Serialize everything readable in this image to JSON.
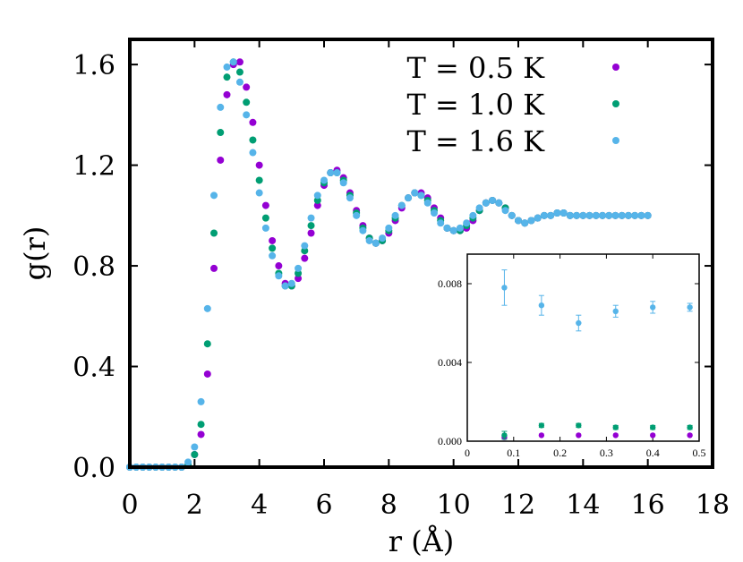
{
  "chart_data": [
    {
      "type": "scatter",
      "xlabel": "r (Å)",
      "ylabel": "g(r)",
      "xlim": [
        0,
        18
      ],
      "ylim": [
        0.0,
        1.7
      ],
      "xticks": [
        "0",
        "2",
        "4",
        "6",
        "8",
        "10",
        "12",
        "14",
        "16",
        "18"
      ],
      "yticks": [
        "0.0",
        "0.4",
        "0.8",
        "1.2",
        "1.6"
      ],
      "legend_position": "top-right",
      "series": [
        {
          "name": "T = 0.5 K",
          "color": "#9400d3",
          "x": [
            0.0,
            0.2,
            0.4,
            0.6,
            0.8,
            1.0,
            1.2,
            1.4,
            1.6,
            1.8,
            2.0,
            2.2,
            2.4,
            2.6,
            2.8,
            3.0,
            3.2,
            3.4,
            3.6,
            3.8,
            4.0,
            4.2,
            4.4,
            4.6,
            4.8,
            5.0,
            5.2,
            5.4,
            5.6,
            5.8,
            6.0,
            6.2,
            6.4,
            6.6,
            6.8,
            7.0,
            7.2,
            7.4,
            7.6,
            7.8,
            8.0,
            8.2,
            8.4,
            8.6,
            8.8,
            9.0,
            9.2,
            9.4,
            9.6,
            9.8,
            10.0,
            10.2,
            10.4,
            10.6,
            10.8,
            11.0,
            11.2,
            11.4,
            11.6,
            11.8,
            12.0,
            12.2,
            12.4,
            12.6,
            12.8,
            13.0,
            13.2,
            13.4,
            13.6,
            13.8,
            14.0,
            14.2,
            14.4,
            14.6,
            14.8,
            15.0,
            15.2,
            15.4,
            15.6,
            15.8,
            16.0
          ],
          "y": [
            0.0,
            0.0,
            0.0,
            0.0,
            0.0,
            0.0,
            0.0,
            0.0,
            0.0,
            0.01,
            0.05,
            0.13,
            0.37,
            0.79,
            1.22,
            1.48,
            1.6,
            1.61,
            1.51,
            1.37,
            1.2,
            1.04,
            0.9,
            0.8,
            0.73,
            0.72,
            0.75,
            0.83,
            0.93,
            1.04,
            1.12,
            1.17,
            1.18,
            1.15,
            1.09,
            1.02,
            0.96,
            0.91,
            0.89,
            0.9,
            0.93,
            0.98,
            1.03,
            1.07,
            1.09,
            1.09,
            1.07,
            1.03,
            0.99,
            0.95,
            0.94,
            0.94,
            0.95,
            0.98,
            1.02,
            1.05,
            1.06,
            1.05,
            1.03,
            1.0,
            0.98,
            0.97,
            0.98,
            0.99,
            1.0,
            1.0,
            1.01,
            1.01,
            1.0,
            1.0,
            1.0,
            1.0,
            1.0,
            1.0,
            1.0,
            1.0,
            1.0,
            1.0,
            1.0,
            1.0,
            1.0
          ]
        },
        {
          "name": "T = 1.0 K",
          "color": "#009e73",
          "x": [
            0.0,
            0.2,
            0.4,
            0.6,
            0.8,
            1.0,
            1.2,
            1.4,
            1.6,
            1.8,
            2.0,
            2.2,
            2.4,
            2.6,
            2.8,
            3.0,
            3.2,
            3.4,
            3.6,
            3.8,
            4.0,
            4.2,
            4.4,
            4.6,
            4.8,
            5.0,
            5.2,
            5.4,
            5.6,
            5.8,
            6.0,
            6.2,
            6.4,
            6.6,
            6.8,
            7.0,
            7.2,
            7.4,
            7.6,
            7.8,
            8.0,
            8.2,
            8.4,
            8.6,
            8.8,
            9.0,
            9.2,
            9.4,
            9.6,
            9.8,
            10.0,
            10.2,
            10.4,
            10.6,
            10.8,
            11.0,
            11.2,
            11.4,
            11.6,
            11.8,
            12.0,
            12.2,
            12.4,
            12.6,
            12.8,
            13.0,
            13.2,
            13.4,
            13.6,
            13.8,
            14.0,
            14.2,
            14.4,
            14.6,
            14.8,
            15.0,
            15.2,
            15.4,
            15.6,
            15.8,
            16.0
          ],
          "y": [
            0.0,
            0.0,
            0.0,
            0.0,
            0.0,
            0.0,
            0.0,
            0.0,
            0.0,
            0.01,
            0.05,
            0.17,
            0.49,
            0.93,
            1.33,
            1.55,
            1.61,
            1.57,
            1.45,
            1.3,
            1.14,
            0.99,
            0.87,
            0.77,
            0.72,
            0.72,
            0.77,
            0.86,
            0.96,
            1.06,
            1.13,
            1.17,
            1.17,
            1.14,
            1.08,
            1.01,
            0.95,
            0.91,
            0.89,
            0.9,
            0.94,
            0.99,
            1.04,
            1.07,
            1.09,
            1.08,
            1.06,
            1.02,
            0.98,
            0.95,
            0.94,
            0.94,
            0.96,
            0.99,
            1.02,
            1.05,
            1.06,
            1.05,
            1.03,
            1.0,
            0.98,
            0.97,
            0.98,
            0.99,
            1.0,
            1.0,
            1.01,
            1.01,
            1.0,
            1.0,
            1.0,
            1.0,
            1.0,
            1.0,
            1.0,
            1.0,
            1.0,
            1.0,
            1.0,
            1.0,
            1.0
          ]
        },
        {
          "name": "T = 1.6 K",
          "color": "#56b4e9",
          "x": [
            0.0,
            0.2,
            0.4,
            0.6,
            0.8,
            1.0,
            1.2,
            1.4,
            1.6,
            1.8,
            2.0,
            2.2,
            2.4,
            2.6,
            2.8,
            3.0,
            3.2,
            3.4,
            3.6,
            3.8,
            4.0,
            4.2,
            4.4,
            4.6,
            4.8,
            5.0,
            5.2,
            5.4,
            5.6,
            5.8,
            6.0,
            6.2,
            6.4,
            6.6,
            6.8,
            7.0,
            7.2,
            7.4,
            7.6,
            7.8,
            8.0,
            8.2,
            8.4,
            8.6,
            8.8,
            9.0,
            9.2,
            9.4,
            9.6,
            9.8,
            10.0,
            10.2,
            10.4,
            10.6,
            10.8,
            11.0,
            11.2,
            11.4,
            11.6,
            11.8,
            12.0,
            12.2,
            12.4,
            12.6,
            12.8,
            13.0,
            13.2,
            13.4,
            13.6,
            13.8,
            14.0,
            14.2,
            14.4,
            14.6,
            14.8,
            15.0,
            15.2,
            15.4,
            15.6,
            15.8,
            16.0
          ],
          "y": [
            0.0,
            0.0,
            0.0,
            0.0,
            0.0,
            0.0,
            0.0,
            0.0,
            0.0,
            0.02,
            0.08,
            0.26,
            0.63,
            1.08,
            1.43,
            1.59,
            1.61,
            1.53,
            1.4,
            1.25,
            1.09,
            0.95,
            0.84,
            0.76,
            0.72,
            0.73,
            0.79,
            0.88,
            0.99,
            1.08,
            1.14,
            1.17,
            1.17,
            1.13,
            1.07,
            1.0,
            0.94,
            0.9,
            0.89,
            0.91,
            0.95,
            1.0,
            1.04,
            1.07,
            1.09,
            1.08,
            1.05,
            1.01,
            0.97,
            0.95,
            0.94,
            0.95,
            0.97,
            1.0,
            1.03,
            1.05,
            1.06,
            1.05,
            1.02,
            1.0,
            0.98,
            0.97,
            0.98,
            0.99,
            1.0,
            1.0,
            1.01,
            1.01,
            1.0,
            1.0,
            1.0,
            1.0,
            1.0,
            1.0,
            1.0,
            1.0,
            1.0,
            1.0,
            1.0,
            1.0,
            1.0
          ]
        }
      ]
    },
    {
      "type": "scatter",
      "title": "",
      "xlabel": "",
      "ylabel": "",
      "xlim": [
        0,
        0.5
      ],
      "ylim": [
        0.0,
        0.0095
      ],
      "xticks": [
        "0",
        "0.1",
        "0.2",
        "0.3",
        "0.4",
        "0.5"
      ],
      "yticks": [
        "0.000",
        "0.004",
        "0.008"
      ],
      "series": [
        {
          "name": "T = 0.5 K",
          "color": "#9400d3",
          "x": [
            0.08,
            0.16,
            0.24,
            0.32,
            0.4,
            0.48
          ],
          "y": [
            0.0002,
            0.0003,
            0.0003,
            0.0003,
            0.0003,
            0.0003
          ],
          "err": [
            0,
            0,
            0,
            0,
            0,
            0
          ]
        },
        {
          "name": "T = 1.0 K",
          "color": "#009e73",
          "x": [
            0.08,
            0.16,
            0.24,
            0.32,
            0.4,
            0.48
          ],
          "y": [
            0.0003,
            0.0008,
            0.0008,
            0.0007,
            0.0007,
            0.0007
          ],
          "err": [
            0.0002,
            0.0001,
            0.0001,
            0.0001,
            0.0001,
            0.0001
          ]
        },
        {
          "name": "T = 1.6 K",
          "color": "#56b4e9",
          "x": [
            0.08,
            0.16,
            0.24,
            0.32,
            0.4,
            0.48
          ],
          "y": [
            0.0078,
            0.0069,
            0.006,
            0.0066,
            0.0068,
            0.0068
          ],
          "err": [
            0.0009,
            0.0005,
            0.0004,
            0.0003,
            0.0003,
            0.0002
          ]
        }
      ]
    }
  ]
}
